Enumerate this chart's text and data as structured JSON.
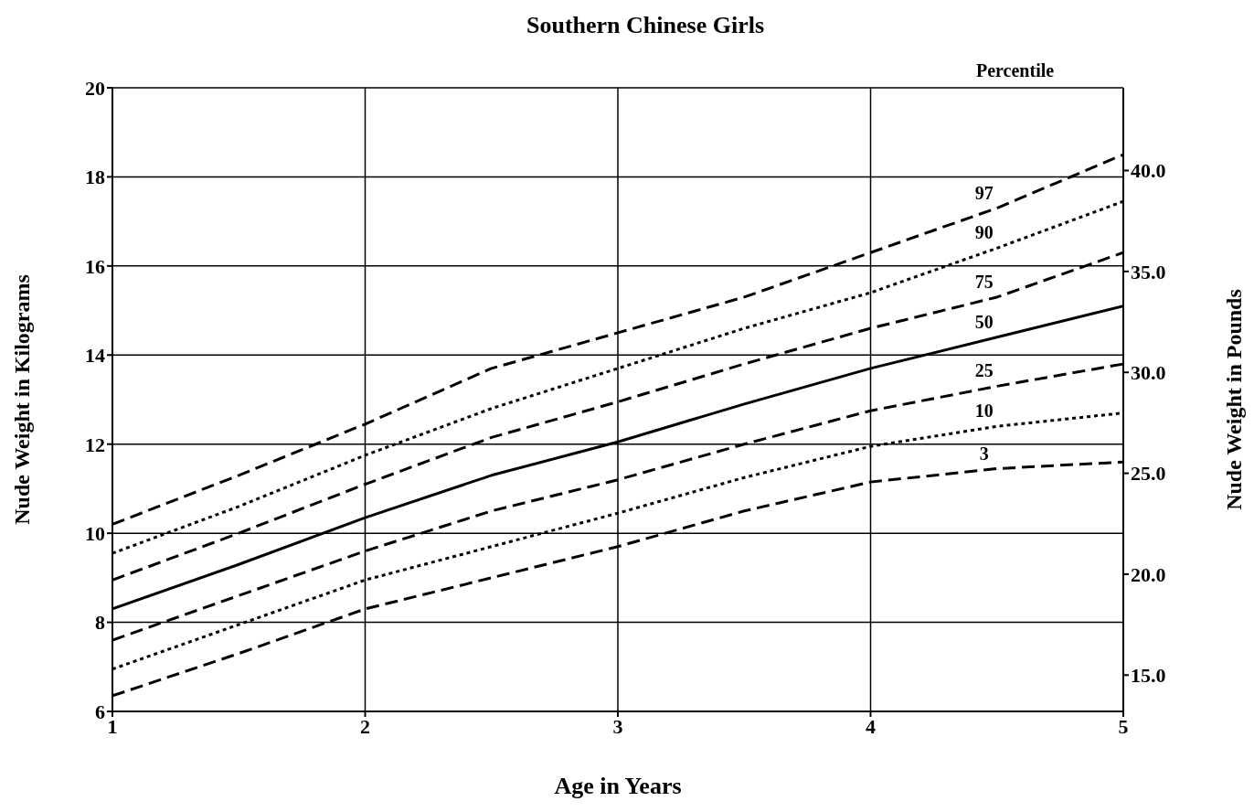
{
  "chart_data": {
    "type": "line",
    "title": "Southern Chinese Girls",
    "xlabel": "Age in Years",
    "ylabel": "Nude Weight in Kilograms",
    "y2label": "Nude Weight in Pounds",
    "legend_title": "Percentile",
    "x": [
      1,
      1.5,
      2,
      2.5,
      3,
      3.5,
      4,
      4.5,
      5
    ],
    "xlim": [
      1,
      5
    ],
    "xticks": [
      1,
      2,
      3,
      4,
      5
    ],
    "ylim": [
      6,
      20
    ],
    "yticks": [
      6,
      8,
      10,
      12,
      14,
      16,
      18,
      20
    ],
    "y2lim": [
      13.2,
      44.1
    ],
    "y2ticks": [
      {
        "value": 15,
        "label": "15.0"
      },
      {
        "value": 20,
        "label": "20.0"
      },
      {
        "value": 25,
        "label": "25.0"
      },
      {
        "value": 30,
        "label": "30.0"
      },
      {
        "value": 35,
        "label": "35.0"
      },
      {
        "value": 40,
        "label": "40.0"
      }
    ],
    "grid": true,
    "marker": "none",
    "series": [
      {
        "name": "97",
        "color": "#000000",
        "line_style": "dashed",
        "values": [
          10.2,
          11.3,
          12.45,
          13.7,
          14.5,
          15.3,
          16.3,
          17.3,
          18.5
        ]
      },
      {
        "name": "90",
        "color": "#000000",
        "line_style": "dotted",
        "values": [
          9.55,
          10.6,
          11.75,
          12.8,
          13.7,
          14.6,
          15.4,
          16.4,
          17.45
        ]
      },
      {
        "name": "75",
        "color": "#000000",
        "line_style": "dashed",
        "values": [
          8.95,
          10.0,
          11.1,
          12.15,
          12.95,
          13.8,
          14.6,
          15.3,
          16.3
        ]
      },
      {
        "name": "50",
        "color": "#000000",
        "line_style": "solid",
        "values": [
          8.3,
          9.3,
          10.35,
          11.3,
          12.05,
          12.9,
          13.7,
          14.4,
          15.1
        ]
      },
      {
        "name": "25",
        "color": "#000000",
        "line_style": "dashed",
        "values": [
          7.6,
          8.6,
          9.6,
          10.5,
          11.2,
          12.0,
          12.75,
          13.3,
          13.8
        ]
      },
      {
        "name": "10",
        "color": "#000000",
        "line_style": "dotted",
        "values": [
          6.95,
          7.95,
          8.95,
          9.7,
          10.45,
          11.25,
          11.95,
          12.4,
          12.7
        ]
      },
      {
        "name": "3",
        "color": "#000000",
        "line_style": "dashed",
        "values": [
          6.35,
          7.3,
          8.3,
          9.0,
          9.7,
          10.5,
          11.15,
          11.45,
          11.6
        ]
      }
    ]
  }
}
